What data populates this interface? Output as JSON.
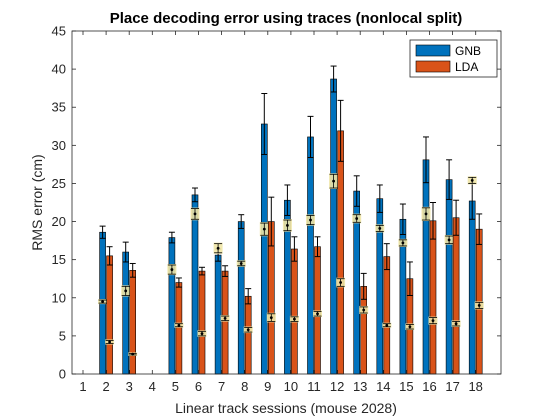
{
  "chart_data": {
    "type": "bar",
    "title": "Place decoding error using traces (nonlocal split)",
    "xlabel": "Linear track sessions (mouse 2028)",
    "ylabel": "RMS error (cm)",
    "ylim": [
      0,
      45
    ],
    "yticks": [
      0,
      5,
      10,
      15,
      20,
      25,
      30,
      35,
      40,
      45
    ],
    "categories": [
      "1",
      "2",
      "3",
      "4",
      "5",
      "6",
      "7",
      "8",
      "9",
      "10",
      "11",
      "12",
      "13",
      "14",
      "15",
      "16",
      "17",
      "18"
    ],
    "legend_position": "top-right",
    "grid": false,
    "series": [
      {
        "name": "GNB",
        "color": "#0072BD",
        "values": [
          null,
          18.6,
          16.0,
          null,
          17.9,
          23.5,
          15.6,
          20.0,
          32.8,
          22.8,
          31.1,
          38.7,
          24.0,
          23.0,
          20.3,
          28.1,
          25.5,
          22.7
        ],
        "error": [
          null,
          0.8,
          1.3,
          null,
          0.7,
          0.9,
          0.8,
          0.9,
          4.0,
          2.0,
          2.7,
          1.7,
          2.0,
          1.8,
          2.0,
          3.0,
          2.6,
          2.4
        ],
        "shuffle_means": [
          null,
          9.5,
          10.9,
          null,
          13.7,
          21.0,
          16.5,
          14.5,
          19.0,
          19.5,
          20.2,
          25.3,
          20.4,
          19.1,
          17.2,
          21.0,
          17.6,
          25.4
        ],
        "shuffle_error": [
          null,
          0.2,
          0.6,
          null,
          0.6,
          0.7,
          0.6,
          0.3,
          0.8,
          0.7,
          0.6,
          0.9,
          0.5,
          0.4,
          0.4,
          0.8,
          0.5,
          0.4
        ]
      },
      {
        "name": "LDA",
        "color": "#D95319",
        "values": [
          null,
          15.5,
          13.6,
          null,
          12.0,
          13.5,
          13.5,
          10.2,
          20.0,
          16.4,
          16.7,
          31.9,
          11.5,
          15.4,
          12.5,
          20.1,
          20.5,
          19.0
        ],
        "error": [
          null,
          1.2,
          0.9,
          null,
          0.6,
          0.5,
          0.7,
          1.0,
          3.2,
          1.6,
          1.3,
          4.0,
          1.7,
          1.7,
          2.2,
          2.4,
          2.3,
          2.0
        ],
        "shuffle_means": [
          null,
          4.2,
          2.6,
          null,
          6.4,
          5.3,
          7.3,
          5.8,
          7.4,
          7.2,
          7.9,
          12.0,
          8.4,
          6.4,
          6.2,
          7.0,
          6.6,
          9.0
        ],
        "shuffle_error": [
          null,
          0.2,
          0.1,
          null,
          0.2,
          0.3,
          0.3,
          0.3,
          0.5,
          0.3,
          0.3,
          0.5,
          0.4,
          0.2,
          0.3,
          0.4,
          0.3,
          0.4
        ]
      }
    ]
  }
}
